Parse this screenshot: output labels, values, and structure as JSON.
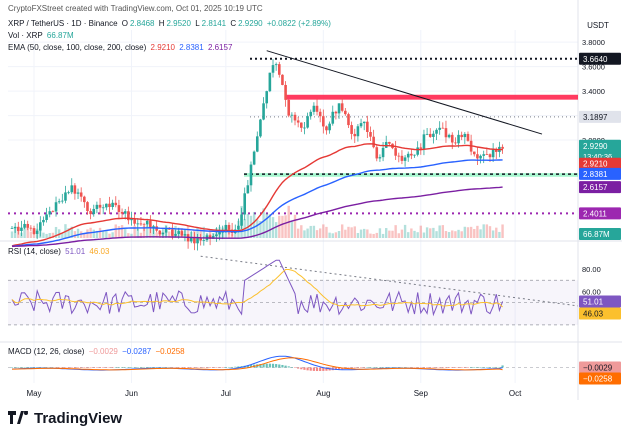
{
  "header": {
    "caption": "CryptoFXStreet created with TradingView.com, Oct 01, 2025 10:19 UTC",
    "symbol": "XRP / TetherUS · 1D · Binance",
    "ohlc": {
      "o_label": "O",
      "o": "2.8468",
      "h_label": "H",
      "h": "2.9520",
      "l_label": "L",
      "l": "2.8141",
      "c_label": "C",
      "c": "2.9290",
      "change": "+0.0822 (+2.89%)"
    },
    "vol": {
      "label": "Vol · XRP",
      "value": "66.87M"
    },
    "ema": {
      "label": "EMA (50, close, 100, close, 200, close)",
      "v50": "2.9210",
      "v100": "2.8381",
      "v200": "2.6157"
    },
    "rsi": {
      "label": "RSI (14, close)",
      "v1": "51.01",
      "v2": "46.03"
    },
    "macd": {
      "label": "MACD (12, 26, close)",
      "v1": "−0.0029",
      "v2": "−0.0287",
      "v3": "−0.0258"
    }
  },
  "axis": {
    "currency": "USDT",
    "x_labels": [
      "May",
      "Jun",
      "Jul",
      "Aug",
      "Sep",
      "Oct"
    ],
    "price_ticks": [
      "3.8000",
      "3.6000",
      "3.4000",
      "3.2000",
      "3.0000"
    ],
    "rsi_ticks": [
      "80.00",
      "60.00",
      "40.00"
    ],
    "tags": {
      "r1": "3.6640",
      "r2": "3.1897",
      "price": "2.9290",
      "countdown": "13:40:36",
      "ema50": "2.9210",
      "ema100": "2.8381",
      "ema200": "2.6157",
      "s1": "2.4011",
      "vol": "66.87M",
      "rsi1": "51.01",
      "rsi2": "46.03",
      "macd1": "−0.0029",
      "macd2": "−0.0258"
    }
  },
  "colors": {
    "up": "#26a69a",
    "down": "#ef5350",
    "ema50": "#e53935",
    "ema100": "#2962ff",
    "ema200": "#7b1fa2",
    "rsi": "#7e57c2",
    "rsi_ma": "#fbc02d",
    "macd": "#2962ff",
    "signal": "#ff6d00",
    "support": "#00e676",
    "resist": "#ff1744",
    "dotted": "#9c27b0"
  },
  "chart_data": {
    "type": "candlestick",
    "title": "XRP / TetherUS · 1D · Binance",
    "x_dates": [
      "2025-04-24",
      "2025-09-30"
    ],
    "ylim": [
      2.2,
      3.85
    ],
    "anchors": [
      {
        "i": 0,
        "close": 2.28
      },
      {
        "i": 8,
        "close": 2.26
      },
      {
        "i": 15,
        "close": 2.5
      },
      {
        "i": 19,
        "close": 2.63
      },
      {
        "i": 24,
        "close": 2.42
      },
      {
        "i": 30,
        "close": 2.48
      },
      {
        "i": 38,
        "close": 2.36
      },
      {
        "i": 46,
        "close": 2.26
      },
      {
        "i": 54,
        "close": 2.22
      },
      {
        "i": 60,
        "close": 2.18
      },
      {
        "i": 66,
        "close": 2.25
      },
      {
        "i": 72,
        "close": 2.3
      },
      {
        "i": 76,
        "close": 2.8
      },
      {
        "i": 80,
        "close": 3.3
      },
      {
        "i": 82,
        "close": 3.55
      },
      {
        "i": 84,
        "close": 3.62
      },
      {
        "i": 86,
        "close": 3.45
      },
      {
        "i": 88,
        "close": 3.2
      },
      {
        "i": 92,
        "close": 3.1
      },
      {
        "i": 96,
        "close": 3.28
      },
      {
        "i": 100,
        "close": 3.08
      },
      {
        "i": 104,
        "close": 3.3
      },
      {
        "i": 108,
        "close": 3.05
      },
      {
        "i": 112,
        "close": 3.15
      },
      {
        "i": 116,
        "close": 2.85
      },
      {
        "i": 120,
        "close": 2.97
      },
      {
        "i": 124,
        "close": 2.83
      },
      {
        "i": 128,
        "close": 2.88
      },
      {
        "i": 132,
        "close": 3.05
      },
      {
        "i": 136,
        "close": 3.1
      },
      {
        "i": 140,
        "close": 2.98
      },
      {
        "i": 144,
        "close": 3.05
      },
      {
        "i": 148,
        "close": 2.85
      },
      {
        "i": 152,
        "close": 2.86
      },
      {
        "i": 156,
        "close": 2.929
      }
    ],
    "levels": {
      "r1": 3.664,
      "resist_zone": [
        3.33,
        3.37
      ],
      "r2": 3.1897,
      "support_zone": [
        2.7,
        2.73
      ],
      "s1": 2.4011
    },
    "trendline": [
      {
        "date": "2025-07-14",
        "price": 3.73
      },
      {
        "date": "2025-09-30",
        "price": 3.0
      }
    ],
    "ema_last": {
      "ema50": 2.921,
      "ema100": 2.8381,
      "ema200": 2.6157
    },
    "rsi": {
      "last": 51.01,
      "ma_last": 46.03,
      "levels": [
        70,
        50,
        30
      ],
      "peak": 88,
      "ticks": [
        80,
        60,
        40
      ]
    },
    "macd": {
      "last": -0.0029,
      "signal_last": -0.0287,
      "hist_last": -0.0258
    }
  }
}
